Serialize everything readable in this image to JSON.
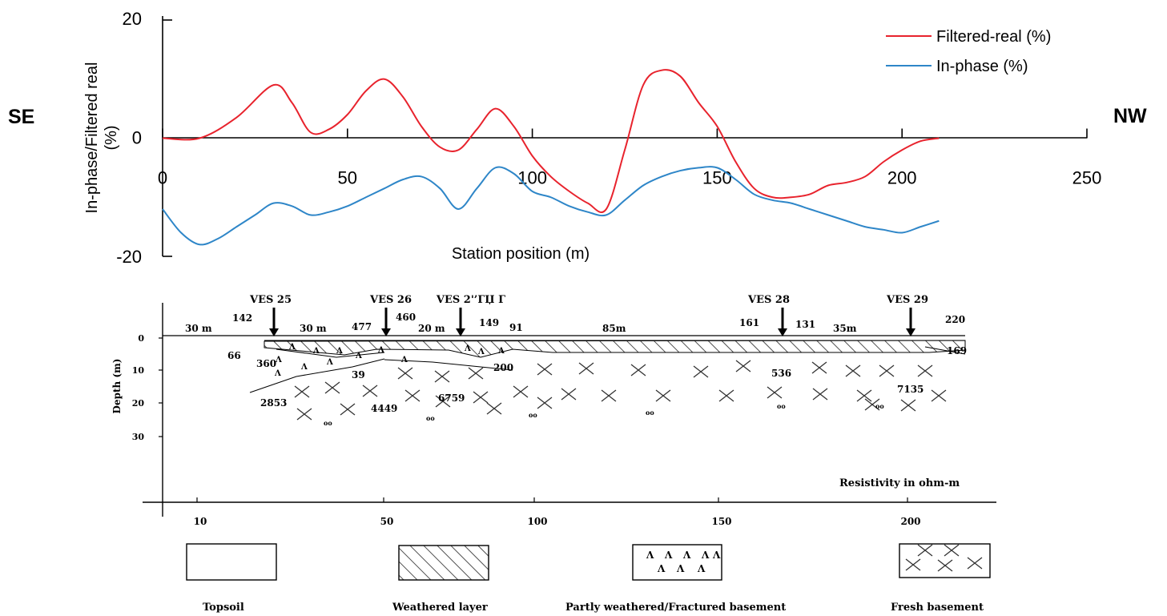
{
  "chart_data": [
    {
      "type": "line",
      "xlabel": "Station position (m)",
      "ylabel_line1": "In-phase/Filtered real",
      "ylabel_line2": "(%)",
      "xlim": [
        0,
        250
      ],
      "ylim": [
        -20,
        20
      ],
      "xticks": [
        0,
        50,
        100,
        150,
        200,
        250
      ],
      "yticks": [
        20,
        0,
        -20
      ],
      "left_direction": "SE",
      "right_direction": "NW",
      "legend_position": "top-right",
      "series": [
        {
          "name": "Filtered-real (%)",
          "color": "#e8232d",
          "points": [
            [
              0,
              0
            ],
            [
              10,
              0
            ],
            [
              20,
              3.5
            ],
            [
              30,
              9
            ],
            [
              35,
              6
            ],
            [
              40,
              1
            ],
            [
              45,
              1.5
            ],
            [
              50,
              4
            ],
            [
              55,
              8
            ],
            [
              60,
              10
            ],
            [
              65,
              7
            ],
            [
              70,
              2
            ],
            [
              75,
              -1.5
            ],
            [
              80,
              -2
            ],
            [
              85,
              1.5
            ],
            [
              90,
              5
            ],
            [
              95,
              2
            ],
            [
              100,
              -3
            ],
            [
              105,
              -6.5
            ],
            [
              110,
              -9
            ],
            [
              115,
              -11
            ],
            [
              120,
              -12
            ],
            [
              125,
              -2
            ],
            [
              130,
              9
            ],
            [
              135,
              11.5
            ],
            [
              140,
              10.5
            ],
            [
              145,
              6
            ],
            [
              150,
              2
            ],
            [
              155,
              -4
            ],
            [
              160,
              -8.5
            ],
            [
              165,
              -10
            ],
            [
              170,
              -10
            ],
            [
              175,
              -9.5
            ],
            [
              180,
              -8
            ],
            [
              185,
              -7.5
            ],
            [
              190,
              -6.5
            ],
            [
              195,
              -4
            ],
            [
              200,
              -2
            ],
            [
              205,
              -0.5
            ],
            [
              210,
              0
            ]
          ]
        },
        {
          "name": "In-phase (%)",
          "color": "#2e86c8",
          "points": [
            [
              0,
              -12
            ],
            [
              5,
              -16
            ],
            [
              10,
              -18
            ],
            [
              15,
              -17
            ],
            [
              20,
              -15
            ],
            [
              25,
              -13
            ],
            [
              30,
              -11
            ],
            [
              35,
              -11.5
            ],
            [
              40,
              -13
            ],
            [
              45,
              -12.5
            ],
            [
              50,
              -11.5
            ],
            [
              55,
              -10
            ],
            [
              60,
              -8.5
            ],
            [
              65,
              -7
            ],
            [
              70,
              -6.5
            ],
            [
              75,
              -8.5
            ],
            [
              80,
              -12
            ],
            [
              85,
              -8.5
            ],
            [
              90,
              -5
            ],
            [
              95,
              -6
            ],
            [
              100,
              -9
            ],
            [
              105,
              -10
            ],
            [
              110,
              -11.5
            ],
            [
              115,
              -12.5
            ],
            [
              120,
              -13
            ],
            [
              125,
              -10.5
            ],
            [
              130,
              -8
            ],
            [
              135,
              -6.5
            ],
            [
              140,
              -5.5
            ],
            [
              145,
              -5
            ],
            [
              150,
              -5
            ],
            [
              155,
              -7
            ],
            [
              160,
              -9.5
            ],
            [
              165,
              -10.5
            ],
            [
              170,
              -11
            ],
            [
              175,
              -12
            ],
            [
              180,
              -13
            ],
            [
              185,
              -14
            ],
            [
              190,
              -15
            ],
            [
              195,
              -15.5
            ],
            [
              200,
              -16
            ],
            [
              205,
              -15
            ],
            [
              210,
              -14
            ]
          ]
        }
      ]
    },
    {
      "type": "geologic-section",
      "ylabel": "Depth (m)",
      "xticks": [
        "10",
        "50",
        "100",
        "150",
        "200"
      ],
      "yticks": [
        "0",
        "10",
        "20",
        "30"
      ],
      "note": "Resistivity in ohm-m",
      "ves": [
        {
          "name": "VES 25",
          "station": 20
        },
        {
          "name": "VES 26",
          "station": 50
        },
        {
          "name": "VES 2'’ГЏ Г",
          "station": 75
        },
        {
          "name": "VES 28",
          "station": 165
        },
        {
          "name": "VES 29",
          "station": 200
        }
      ],
      "spacings": [
        "30 m",
        "30 m",
        "20 m",
        "85m",
        "35m"
      ],
      "resistivities": [
        "142",
        "66",
        "360",
        "2853",
        "477",
        "460",
        "39",
        "4449",
        "149",
        "91",
        "200",
        "6759",
        "161",
        "131",
        "536",
        "220",
        "169",
        "7135"
      ]
    }
  ],
  "legend": {
    "topsoil": "Topsoil",
    "weathered": "Weathered layer",
    "fractured": "Partly weathered/Fractured basement",
    "fresh": "Fresh basement"
  }
}
